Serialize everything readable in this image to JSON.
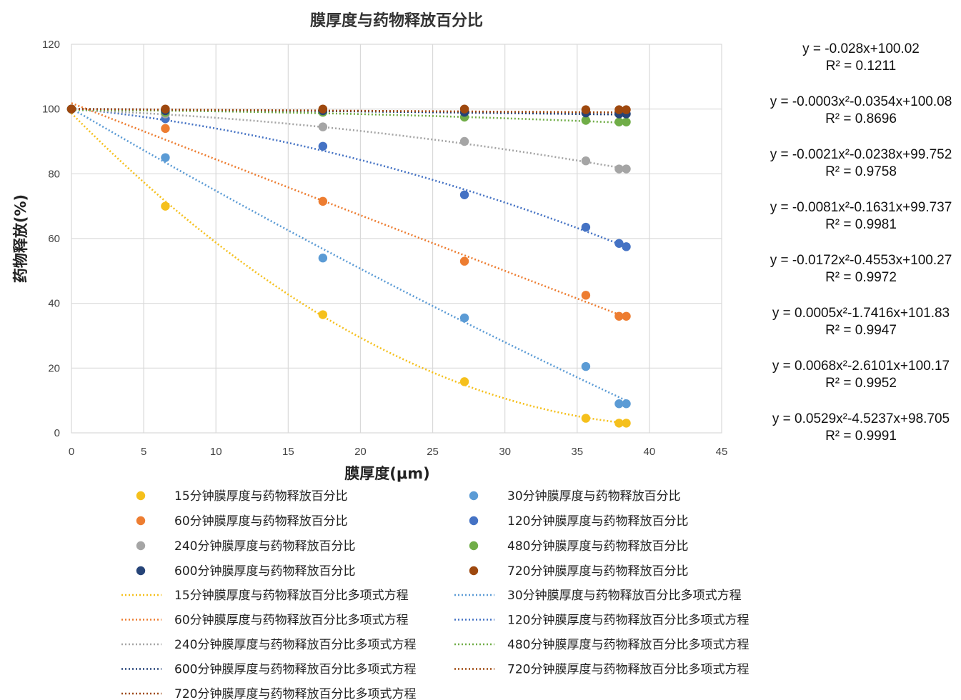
{
  "chart_data": {
    "type": "scatter",
    "title": "膜厚度与药物释放百分比",
    "xlabel": "膜厚度(μm)",
    "ylabel": "药物释放(%)",
    "xlim": [
      0,
      45
    ],
    "ylim": [
      0,
      120
    ],
    "xticks": [
      0,
      5,
      10,
      15,
      20,
      25,
      30,
      35,
      40,
      45
    ],
    "yticks": [
      0,
      20,
      40,
      60,
      80,
      100,
      120
    ],
    "grid": true,
    "legend_position": "bottom",
    "x": [
      0,
      6.5,
      17.4,
      27.2,
      35.6,
      37.9,
      38.4
    ],
    "series": [
      {
        "name": "15分钟膜厚度与药物释放百分比",
        "color": "#f5c01c",
        "values": [
          100,
          70,
          36.5,
          15.8,
          4.5,
          3,
          3
        ],
        "trend": [
          0.0529,
          -4.5237,
          98.705
        ]
      },
      {
        "name": "30分钟膜厚度与药物释放百分比",
        "color": "#5b9bd5",
        "values": [
          100,
          85,
          54,
          35.5,
          20.5,
          9,
          9
        ],
        "trend": [
          0.0068,
          -2.6101,
          100.17
        ]
      },
      {
        "name": "60分钟膜厚度与药物释放百分比",
        "color": "#ed7d31",
        "values": [
          100,
          94,
          71.5,
          53,
          42.5,
          36,
          36
        ],
        "trend": [
          0.0005,
          -1.7416,
          101.83
        ]
      },
      {
        "name": "120分钟膜厚度与药物释放百分比",
        "color": "#4472c4",
        "values": [
          100,
          97,
          88.5,
          73.5,
          63.5,
          58.5,
          57.5
        ],
        "trend": [
          -0.0172,
          -0.4553,
          100.27
        ]
      },
      {
        "name": "240分钟膜厚度与药物释放百分比",
        "color": "#a5a5a5",
        "values": [
          100,
          98.5,
          94.5,
          90,
          84,
          81.5,
          81.5
        ],
        "trend": [
          -0.0081,
          -0.1631,
          99.737
        ]
      },
      {
        "name": "480分钟膜厚度与药物释放百分比",
        "color": "#70ad47",
        "values": [
          100,
          99,
          99,
          97.5,
          96.5,
          96,
          96
        ],
        "trend": [
          -0.0021,
          -0.0238,
          99.752
        ]
      },
      {
        "name": "600分钟膜厚度与药物释放百分比",
        "color": "#264478",
        "values": [
          100,
          99.5,
          99.5,
          99,
          98.8,
          98.5,
          98.5
        ],
        "trend": [
          -0.0003,
          -0.0354,
          100.08
        ]
      },
      {
        "name": "720分钟膜厚度与药物释放百分比",
        "color": "#9e480e",
        "values": [
          100,
          100,
          100,
          100,
          99.8,
          99.8,
          99.8
        ],
        "trend": [
          0,
          -0.028,
          100.02
        ]
      }
    ],
    "equations": [
      {
        "eq": "y = -0.028x+100.02",
        "r2": "R² = 0.1211"
      },
      {
        "eq": "y = -0.0003x²-0.0354x+100.08",
        "r2": "R² = 0.8696"
      },
      {
        "eq": "y = -0.0021x²-0.0238x+99.752",
        "r2": "R² = 0.9758"
      },
      {
        "eq": "y = -0.0081x²-0.1631x+99.737",
        "r2": "R² = 0.9981"
      },
      {
        "eq": "y = -0.0172x²-0.4553x+100.27",
        "r2": "R² = 0.9972"
      },
      {
        "eq": "y = 0.0005x²-1.7416x+101.83",
        "r2": "R² = 0.9947"
      },
      {
        "eq": "y = 0.0068x²-2.6101x+100.17",
        "r2": "R² = 0.9952"
      },
      {
        "eq": "y = 0.0529x²-4.5237x+98.705",
        "r2": "R² = 0.9991"
      }
    ],
    "legend": [
      {
        "kind": "marker",
        "color": "#f5c01c",
        "label": "15分钟膜厚度与药物释放百分比"
      },
      {
        "kind": "marker",
        "color": "#5b9bd5",
        "label": "30分钟膜厚度与药物释放百分比"
      },
      {
        "kind": "marker",
        "color": "#ed7d31",
        "label": "60分钟膜厚度与药物释放百分比"
      },
      {
        "kind": "marker",
        "color": "#4472c4",
        "label": "120分钟膜厚度与药物释放百分比"
      },
      {
        "kind": "marker",
        "color": "#a5a5a5",
        "label": "240分钟膜厚度与药物释放百分比"
      },
      {
        "kind": "marker",
        "color": "#70ad47",
        "label": "480分钟膜厚度与药物释放百分比"
      },
      {
        "kind": "marker",
        "color": "#264478",
        "label": "600分钟膜厚度与药物释放百分比"
      },
      {
        "kind": "marker",
        "color": "#9e480e",
        "label": "720分钟膜厚度与药物释放百分比"
      },
      {
        "kind": "line",
        "color": "#f5c01c",
        "label": "15分钟膜厚度与药物释放百分比多项式方程"
      },
      {
        "kind": "line",
        "color": "#5b9bd5",
        "label": "30分钟膜厚度与药物释放百分比多项式方程"
      },
      {
        "kind": "line",
        "color": "#ed7d31",
        "label": "60分钟膜厚度与药物释放百分比多项式方程"
      },
      {
        "kind": "line",
        "color": "#4472c4",
        "label": "120分钟膜厚度与药物释放百分比多项式方程"
      },
      {
        "kind": "line",
        "color": "#a5a5a5",
        "label": "240分钟膜厚度与药物释放百分比多项式方程"
      },
      {
        "kind": "line",
        "color": "#70ad47",
        "label": "480分钟膜厚度与药物释放百分比多项式方程"
      },
      {
        "kind": "line",
        "color": "#264478",
        "label": "600分钟膜厚度与药物释放百分比多项式方程"
      },
      {
        "kind": "line",
        "color": "#9e480e",
        "label": "720分钟膜厚度与药物释放百分比多项式方程"
      },
      {
        "kind": "line",
        "color": "#9e480e",
        "label": "720分钟膜厚度与药物释放百分比多项式方程"
      }
    ]
  }
}
